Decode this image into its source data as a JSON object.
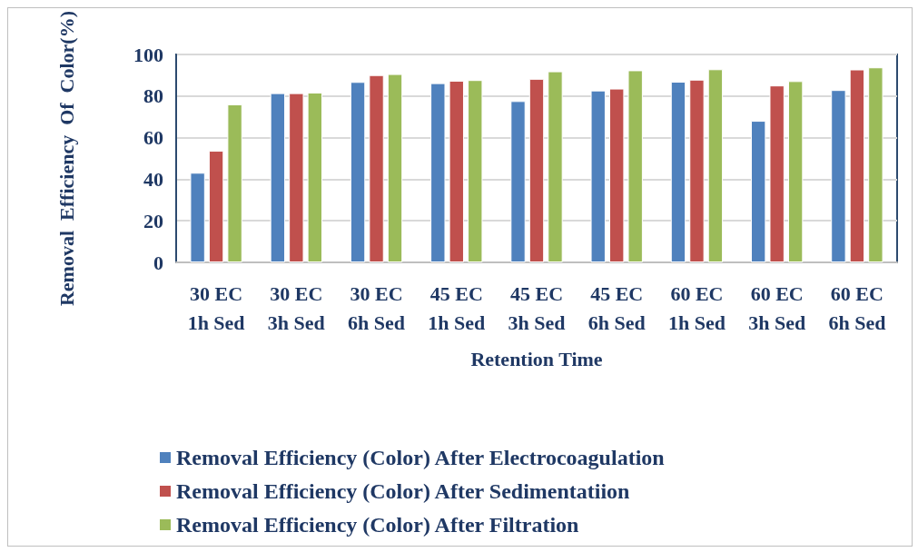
{
  "chart_data": {
    "type": "bar",
    "xlabel": "Retention Time",
    "ylabel": "Removal  Efficiency  Of  Color(%)",
    "categories": [
      "30 EC 1h Sed",
      "30 EC 3h Sed",
      "30 EC 6h Sed",
      "45 EC 1h Sed",
      "45 EC 3h Sed",
      "45 EC 6h Sed",
      "60 EC 1h Sed",
      "60 EC 3h Sed",
      "60 EC 6h Sed"
    ],
    "series": [
      {
        "name": "Removal Efficiency (Color) After Electrocoagulation",
        "color": "#4f81bd",
        "values": [
          43.1,
          81.4,
          86.8,
          86.2,
          77.6,
          82.7,
          86.9,
          68.1,
          82.9
        ]
      },
      {
        "name": "Removal Efficiency (Color) After Sedimentatiion",
        "color": "#c0504d",
        "values": [
          53.7,
          81.4,
          90.1,
          87.4,
          88.3,
          83.6,
          87.9,
          85.1,
          92.8
        ]
      },
      {
        "name": "Removal Efficiency (Color) After Filtration",
        "color": "#9bbb59",
        "values": [
          76.0,
          81.7,
          90.6,
          87.7,
          91.9,
          92.4,
          92.9,
          87.2,
          93.8
        ]
      }
    ],
    "ylim": [
      0,
      100
    ],
    "yticks": [
      0,
      20,
      40,
      60,
      80,
      100
    ],
    "grid": "y",
    "legend": "bottom"
  }
}
